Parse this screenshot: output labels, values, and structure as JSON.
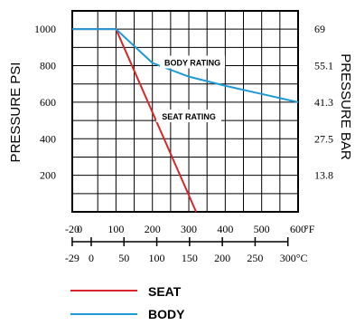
{
  "chart_data": {
    "type": "line",
    "ylabel_left": "PRESSURE PSI",
    "ylabel_right": "PRESSURE BAR",
    "x_unit_f": "°F",
    "x_unit_c": "°C",
    "ylim": [
      0,
      1100
    ],
    "xlim_f": [
      -20,
      600
    ],
    "grid": true,
    "y_ticks_psi": [
      "200",
      "400",
      "600",
      "800",
      "1000"
    ],
    "y_tick_values_psi": [
      200,
      400,
      600,
      800,
      1000
    ],
    "y_ticks_bar": [
      "13.8",
      "27.5",
      "41.3",
      "55.1",
      "69"
    ],
    "y_tick_values_bar_psi": [
      200,
      400,
      600,
      800,
      1000
    ],
    "x_ticks_f": [
      "-20",
      "0",
      "100",
      "200",
      "300",
      "400",
      "500",
      "600"
    ],
    "x_tick_values_f": [
      -20,
      0,
      100,
      200,
      300,
      400,
      500,
      600
    ],
    "x_ticks_c": [
      "-29",
      "0",
      "50",
      "100",
      "150",
      "200",
      "250",
      "300"
    ],
    "x_tick_values_c": [
      -29,
      0,
      50,
      100,
      150,
      200,
      250,
      300
    ],
    "series": [
      {
        "name": "SEAT RATING",
        "legend_label": "SEAT",
        "color": "#d9262b",
        "x": [
          -20,
          100,
          320
        ],
        "y": [
          1000,
          1000,
          0
        ]
      },
      {
        "name": "BODY RATING",
        "legend_label": "BODY",
        "color": "#1e9ad6",
        "x": [
          -20,
          100,
          200,
          300,
          400,
          500,
          600
        ],
        "y": [
          1000,
          1000,
          815,
          740,
          690,
          645,
          600
        ]
      }
    ],
    "annotations": [
      {
        "text": "BODY RATING",
        "x": 310,
        "y": 815
      },
      {
        "text": "SEAT RATING",
        "x": 300,
        "y": 520
      }
    ]
  }
}
